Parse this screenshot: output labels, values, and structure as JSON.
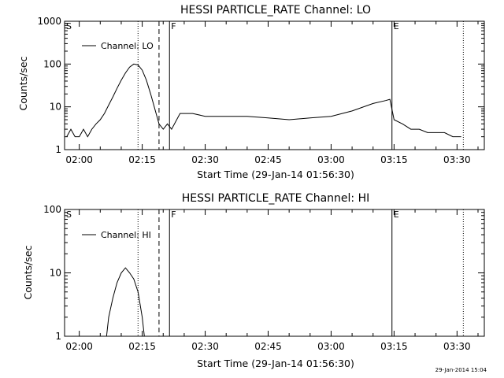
{
  "chart_data": [
    {
      "type": "line",
      "title": "HESSI PARTICLE_RATE Channel: LO",
      "xlabel": "Start Time (29-Jan-14 01:56:30)",
      "ylabel": "Counts/sec",
      "yscale": "log",
      "ylim": [
        1,
        1000
      ],
      "xlim": [
        "01:56:30",
        "03:36:30"
      ],
      "x_ticks": [
        "02:00",
        "02:15",
        "02:30",
        "02:45",
        "03:00",
        "03:15",
        "03:30"
      ],
      "y_ticks": [
        "1",
        "10",
        "100",
        "1000"
      ],
      "legend": {
        "position": "top-left",
        "entries": [
          "Channel: LO"
        ]
      },
      "series": [
        {
          "name": "Channel: LO",
          "x": [
            "01:57:00",
            "01:58:00",
            "01:59:00",
            "02:00:00",
            "02:01:00",
            "02:02:00",
            "02:03:00",
            "02:04:00",
            "02:05:00",
            "02:06:00",
            "02:07:00",
            "02:08:00",
            "02:09:00",
            "02:10:00",
            "02:11:00",
            "02:12:00",
            "02:13:00",
            "02:14:00",
            "02:15:00",
            "02:16:00",
            "02:17:00",
            "02:18:00",
            "02:19:00",
            "02:20:00",
            "02:21:00",
            "02:22:00",
            "02:24:00",
            "02:27:00",
            "02:30:00",
            "02:35:00",
            "02:40:00",
            "02:45:00",
            "02:50:00",
            "02:55:00",
            "03:00:00",
            "03:05:00",
            "03:10:00",
            "03:13:00",
            "03:14:00",
            "03:15:00",
            "03:17:00",
            "03:19:00",
            "03:21:00",
            "03:23:00",
            "03:25:00",
            "03:27:00",
            "03:29:00",
            "03:31:00"
          ],
          "y": [
            2,
            3,
            2,
            2,
            3,
            2,
            3,
            4,
            5,
            7,
            11,
            17,
            27,
            42,
            62,
            85,
            100,
            95,
            72,
            42,
            20,
            9,
            4,
            3,
            4,
            3,
            7,
            7,
            6,
            6,
            6,
            5.5,
            5,
            5.5,
            6,
            8,
            12,
            14,
            15,
            5,
            4,
            3,
            3,
            2.5,
            2.5,
            2.5,
            2,
            2
          ]
        }
      ],
      "markers": [
        {
          "x": "02:14:00",
          "style": "dotted"
        },
        {
          "x": "02:19:00",
          "style": "dashed"
        },
        {
          "x": "02:21:30",
          "style": "solid",
          "label": "F"
        },
        {
          "x": "03:14:30",
          "style": "solid",
          "label": "E"
        },
        {
          "x": "03:31:30",
          "style": "dotted"
        }
      ],
      "corner_label": "S"
    },
    {
      "type": "line",
      "title": "HESSI PARTICLE_RATE Channel: HI",
      "xlabel": "Start Time (29-Jan-14 01:56:30)",
      "ylabel": "Counts/sec",
      "yscale": "log",
      "ylim": [
        1,
        100
      ],
      "xlim": [
        "01:56:30",
        "03:36:30"
      ],
      "x_ticks": [
        "02:00",
        "02:15",
        "02:30",
        "02:45",
        "03:00",
        "03:15",
        "03:30"
      ],
      "y_ticks": [
        "1",
        "10",
        "100"
      ],
      "legend": {
        "position": "top-left",
        "entries": [
          "Channel: HI"
        ]
      },
      "series": [
        {
          "name": "Channel: HI",
          "x": [
            "02:06:30",
            "02:07:00",
            "02:08:00",
            "02:09:00",
            "02:10:00",
            "02:11:00",
            "02:12:00",
            "02:13:00",
            "02:14:00",
            "02:15:00",
            "02:15:30"
          ],
          "y": [
            1,
            2,
            4,
            7,
            10,
            12,
            10,
            8,
            5,
            2,
            1
          ]
        }
      ],
      "markers": [
        {
          "x": "02:14:00",
          "style": "dotted"
        },
        {
          "x": "02:19:00",
          "style": "dashed"
        },
        {
          "x": "02:21:30",
          "style": "solid",
          "label": "F"
        },
        {
          "x": "03:14:30",
          "style": "solid",
          "label": "E"
        },
        {
          "x": "03:31:30",
          "style": "dotted"
        }
      ],
      "corner_label": "S"
    }
  ],
  "footer": {
    "timestamp": "29-Jan-2014 15:04"
  }
}
